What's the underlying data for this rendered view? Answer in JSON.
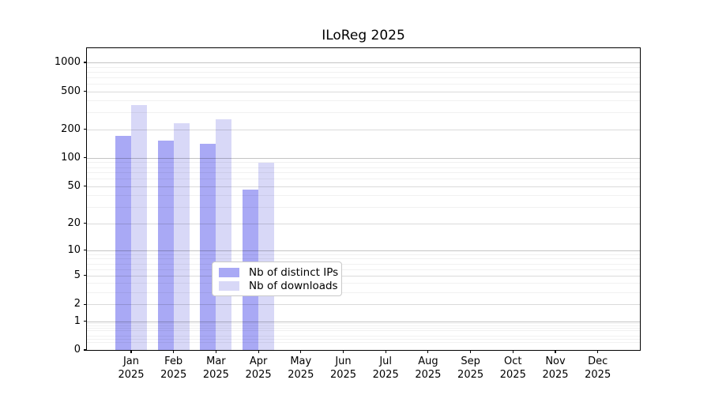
{
  "chart_data": {
    "type": "bar",
    "title": "ILoReg 2025",
    "x_months": [
      "Jan",
      "Feb",
      "Mar",
      "Apr",
      "May",
      "Jun",
      "Jul",
      "Aug",
      "Sep",
      "Oct",
      "Nov",
      "Dec"
    ],
    "x_year": "2025",
    "series": [
      {
        "name": "Nb of distinct IPs",
        "color": "#a9a9f5",
        "values": [
          172,
          151,
          140,
          46,
          0,
          0,
          0,
          0,
          0,
          0,
          0,
          0
        ]
      },
      {
        "name": "Nb of downloads",
        "color": "#d8d8f7",
        "values": [
          362,
          231,
          256,
          89,
          0,
          0,
          0,
          0,
          0,
          0,
          0,
          0
        ]
      }
    ],
    "y_ticks": [
      0,
      1,
      2,
      5,
      10,
      20,
      50,
      100,
      200,
      500,
      1000
    ],
    "y_scale": "log10(value+1)",
    "y_max": 1410,
    "grid": "on",
    "legend_position": "bottom-center"
  }
}
